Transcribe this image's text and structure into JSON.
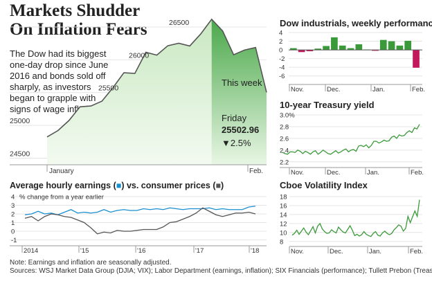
{
  "headline": {
    "line1": "Markets Shudder",
    "line2": "On Inflation Fears"
  },
  "intro": "The Dow had its biggest one-day drop since June 2016 and bonds sold off sharply,  as investors began to grapple with signs of wage inflation.",
  "colors": {
    "green": "#3a9a3a",
    "green_fill": "#8fcf86",
    "magenta": "#c2185b",
    "blue": "#1a8fd0",
    "gray": "#555555",
    "axis": "#999999"
  },
  "main": {
    "this_week": "This week",
    "friday_label": "Friday",
    "friday_value": "25502.96",
    "friday_change": "▼2.5%"
  },
  "earnings": {
    "title_a": "Average hourly earnings (",
    "title_b": ") vs. consumer prices (",
    "title_c": ")",
    "blue_marker": "■",
    "gray_marker": "■",
    "subtitle": "% change from a year earlier"
  },
  "footer": {
    "note": "Note: Earnings and inflation are seasonally adjusted.",
    "sources": "Sources: WSJ Market Data Group (DJIA; VIX); Labor Department (earnings, inflation); SIX Financials (performance); Tullett Prebon (Treasury)"
  },
  "chart_data": [
    {
      "id": "dow-daily",
      "type": "area",
      "title": "",
      "ylim": [
        24400,
        26700
      ],
      "y_ticks": [
        24500,
        25000,
        25500,
        26000,
        26500
      ],
      "x_ticks": [
        "January",
        "Feb."
      ],
      "highlight": "This week",
      "values": [
        24824,
        24922,
        25075,
        25283,
        25296,
        25369,
        25574,
        25803,
        25792,
        26115,
        26071,
        26214,
        26252,
        26210,
        26393,
        26617,
        26439,
        26077,
        26149,
        26187,
        25503
      ]
    },
    {
      "id": "dow-weekly",
      "type": "bar",
      "title": "Dow industrials, weekly performance",
      "unit": "%",
      "ylim": [
        -7,
        4
      ],
      "y_ticks": [
        -6,
        -4,
        -2,
        0,
        2,
        4
      ],
      "x_ticks": [
        "Nov.",
        "Dec.",
        "Jan.",
        "Feb."
      ],
      "values": [
        0.4,
        -0.5,
        -0.3,
        0.3,
        0.9,
        2.9,
        1.0,
        0.4,
        1.3,
        0.1,
        -0.2,
        2.3,
        2.0,
        1.0,
        2.1,
        -4.1
      ]
    },
    {
      "id": "treasury-10y",
      "type": "line",
      "title": "10-year Treasury yield",
      "unit": "%",
      "ylim": [
        2.15,
        3.0
      ],
      "y_ticks": [
        "3.0%",
        "2.8",
        "2.6",
        "2.4",
        "2.2"
      ],
      "x_ticks": [
        "Nov.",
        "Dec.",
        "Jan.",
        "Feb."
      ],
      "values": [
        2.36,
        2.34,
        2.33,
        2.37,
        2.37,
        2.36,
        2.4,
        2.38,
        2.34,
        2.38,
        2.36,
        2.33,
        2.37,
        2.39,
        2.33,
        2.36,
        2.4,
        2.37,
        2.34,
        2.33,
        2.36,
        2.39,
        2.35,
        2.37,
        2.4,
        2.42,
        2.37,
        2.4,
        2.41,
        2.38,
        2.47,
        2.48,
        2.46,
        2.49,
        2.44,
        2.48,
        2.55,
        2.55,
        2.52,
        2.54,
        2.57,
        2.55,
        2.56,
        2.62,
        2.64,
        2.6,
        2.66,
        2.64,
        2.65,
        2.7,
        2.73,
        2.7,
        2.78,
        2.76,
        2.84
      ]
    },
    {
      "id": "vix",
      "type": "line",
      "title": "Cboe Volatility Index",
      "ylim": [
        7.5,
        18
      ],
      "y_ticks": [
        8,
        10,
        12,
        14,
        16,
        18
      ],
      "x_ticks": [
        "Nov.",
        "Dec.",
        "Jan.",
        "Feb."
      ],
      "values": [
        9.4,
        9.8,
        10.5,
        9.6,
        10.3,
        11.0,
        10.1,
        9.5,
        10.4,
        11.3,
        9.9,
        11.4,
        12.0,
        10.8,
        10.2,
        9.8,
        9.9,
        10.6,
        10.2,
        9.9,
        11.2,
        10.6,
        10.1,
        9.9,
        10.7,
        11.5,
        10.5,
        9.3,
        9.6,
        9.2,
        9.5,
        10.2,
        9.6,
        9.3,
        9.1,
        9.8,
        10.2,
        9.4,
        9.2,
        9.9,
        10.3,
        9.8,
        9.5,
        9.8,
        10.6,
        11.1,
        11.7,
        11.4,
        10.3,
        10.9,
        13.6,
        12.2,
        13.5,
        14.8,
        13.6,
        17.3
      ]
    },
    {
      "id": "earnings-vs-prices",
      "type": "line",
      "title": "Average hourly earnings vs. consumer prices",
      "ylabel": "% change from a year earlier",
      "ylim": [
        -1.2,
        4
      ],
      "y_ticks": [
        4,
        3,
        2,
        1,
        0,
        -1
      ],
      "x_ticks": [
        "2014",
        "'15",
        "'16",
        "'17",
        "'18"
      ],
      "series": [
        {
          "name": "Average hourly earnings",
          "values": [
            1.9,
            2.0,
            2.3,
            2.0,
            2.1,
            1.9,
            2.2,
            2.5,
            2.1,
            2.2,
            2.1,
            2.2,
            2.5,
            2.2,
            2.4,
            2.5,
            2.4,
            2.4,
            2.6,
            2.5,
            2.6,
            2.5,
            2.7,
            2.6,
            2.5,
            2.6,
            2.6,
            2.6,
            2.7,
            2.5,
            2.6,
            2.5,
            2.5,
            2.5,
            2.8,
            2.9
          ]
        },
        {
          "name": "consumer prices",
          "values": [
            1.5,
            1.7,
            1.2,
            1.7,
            2.0,
            1.9,
            1.7,
            1.6,
            1.3,
            1.0,
            0.4,
            -0.3,
            -0.1,
            -0.2,
            0.1,
            0.0,
            0.0,
            0.1,
            0.2,
            0.2,
            0.2,
            0.5,
            1.0,
            1.1,
            1.4,
            1.7,
            2.1,
            2.7,
            2.3,
            1.9,
            1.7,
            1.9,
            2.1,
            2.1,
            2.2,
            2.0
          ]
        }
      ]
    }
  ]
}
